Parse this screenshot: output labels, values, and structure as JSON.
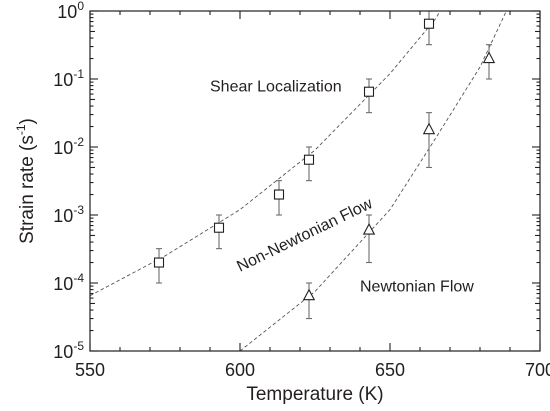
{
  "chart_data": {
    "type": "scatter",
    "xlabel": "Temperature (K)",
    "ylabel_main": "Strain rate (s",
    "ylabel_sup": "-1",
    "ylabel_close": ")",
    "xlim": [
      550,
      700
    ],
    "ylim": [
      1e-05,
      1
    ],
    "yscale": "log",
    "x_ticks": [
      {
        "value": 550,
        "label": "550"
      },
      {
        "value": 600,
        "label": "600"
      },
      {
        "value": 650,
        "label": "650"
      },
      {
        "value": 700,
        "label": "700"
      }
    ],
    "y_ticks": [
      {
        "value": 1e-05,
        "base": "10",
        "exp": "-5"
      },
      {
        "value": 0.0001,
        "base": "10",
        "exp": "-4"
      },
      {
        "value": 0.001,
        "base": "10",
        "exp": "-3"
      },
      {
        "value": 0.01,
        "base": "10",
        "exp": "-2"
      },
      {
        "value": 0.1,
        "base": "10",
        "exp": "-1"
      },
      {
        "value": 1,
        "base": "10",
        "exp": "0"
      }
    ],
    "series": [
      {
        "marker": "square",
        "points": [
          {
            "x": 573,
            "y": 0.0002,
            "ylo": 0.0001,
            "yhi": 0.00032
          },
          {
            "x": 593,
            "y": 0.00065,
            "ylo": 0.00032,
            "yhi": 0.001
          },
          {
            "x": 613,
            "y": 0.002,
            "ylo": 0.001,
            "yhi": 0.0032
          },
          {
            "x": 623,
            "y": 0.0065,
            "ylo": 0.0032,
            "yhi": 0.01
          },
          {
            "x": 643,
            "y": 0.065,
            "ylo": 0.032,
            "yhi": 0.1
          },
          {
            "x": 663,
            "y": 0.65,
            "ylo": 0.32,
            "yhi": 1.0
          }
        ],
        "fit": [
          {
            "x": 550,
            "y": 6.5e-05
          },
          {
            "x": 575,
            "y": 0.00025
          },
          {
            "x": 600,
            "y": 0.0012
          },
          {
            "x": 625,
            "y": 0.009
          },
          {
            "x": 650,
            "y": 0.12
          },
          {
            "x": 665,
            "y": 0.75
          },
          {
            "x": 671,
            "y": 2.0
          }
        ]
      },
      {
        "marker": "triangle",
        "points": [
          {
            "x": 623,
            "y": 6.5e-05,
            "ylo": 3e-05,
            "yhi": 0.0001
          },
          {
            "x": 643,
            "y": 0.0006,
            "ylo": 0.0002,
            "yhi": 0.001
          },
          {
            "x": 663,
            "y": 0.018,
            "ylo": 0.005,
            "yhi": 0.032
          },
          {
            "x": 683,
            "y": 0.2,
            "ylo": 0.1,
            "yhi": 0.32
          }
        ],
        "fit": [
          {
            "x": 600,
            "y": 1e-05
          },
          {
            "x": 625,
            "y": 7.5e-05
          },
          {
            "x": 650,
            "y": 0.0012
          },
          {
            "x": 665,
            "y": 0.013
          },
          {
            "x": 680,
            "y": 0.15
          },
          {
            "x": 692,
            "y": 2.0
          }
        ]
      }
    ],
    "annotations": [
      {
        "id": "shear",
        "text": "Shear Localization",
        "x": 590,
        "y": 0.065,
        "rotate": 0
      },
      {
        "id": "nonnewt",
        "text": "Non-Newtonian Flow",
        "x": 600,
        "y": 0.000145,
        "rotate": -26
      },
      {
        "id": "newt",
        "text": "Newtonian Flow",
        "x": 640,
        "y": 7.5e-05,
        "rotate": 0
      }
    ]
  }
}
